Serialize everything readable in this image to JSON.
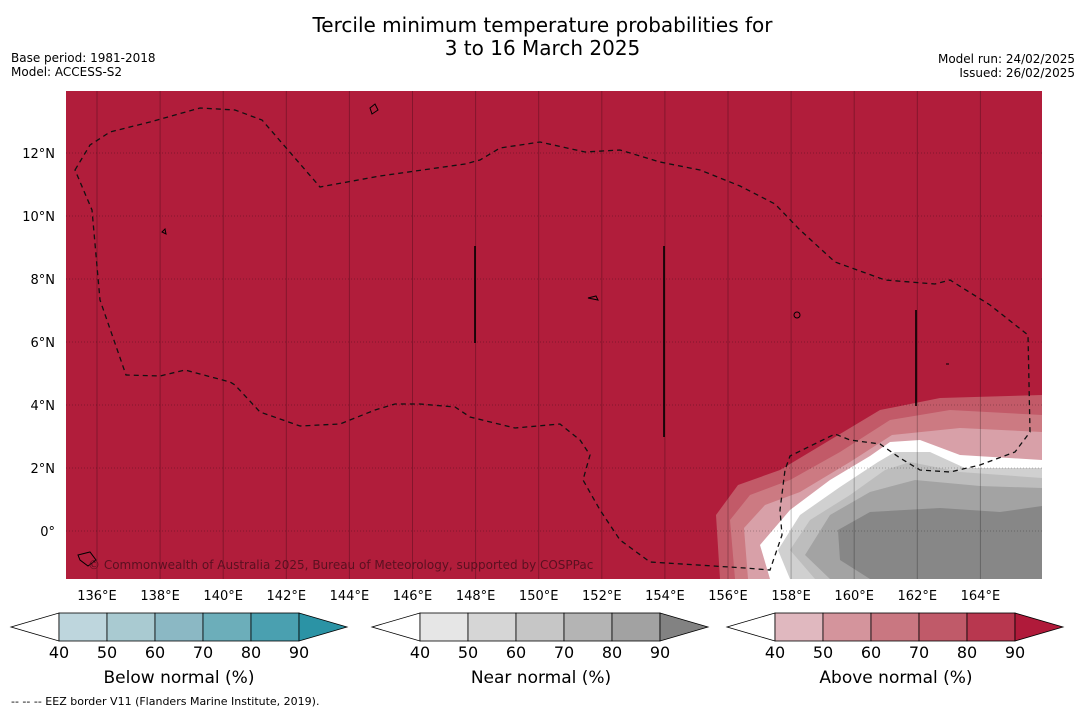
{
  "title_line1": "Tercile minimum temperature probabilities for",
  "title_line2": "3 to 16 March 2025",
  "base_period": "Base period: 1981-2018",
  "model": "Model: ACCESS-S2",
  "model_run": "Model run: 24/02/2025",
  "issued": "Issued: 26/02/2025",
  "copyright": "© Commonwealth of Australia 2025, Bureau of Meteorology, supported by COSPPac",
  "footnote": "--  --  -- EEZ border V11 (Flanders Marine Institute, 2019).",
  "map": {
    "x_ticks": [
      "136°E",
      "138°E",
      "140°E",
      "142°E",
      "144°E",
      "146°E",
      "148°E",
      "150°E",
      "152°E",
      "154°E",
      "156°E",
      "158°E",
      "160°E",
      "162°E",
      "164°E"
    ],
    "y_ticks": [
      "12°N",
      "10°N",
      "8°N",
      "6°N",
      "4°N",
      "2°N",
      "0°"
    ],
    "background_color": "#b11d3b"
  },
  "legends": [
    {
      "label": "Below normal (%)",
      "ticks": [
        "40",
        "50",
        "60",
        "70",
        "80",
        "90"
      ],
      "colors": [
        "#ffffff",
        "#bed6dd",
        "#a9cad1",
        "#8bb8c4",
        "#6caeba",
        "#4aa0b0",
        "#2b93a5"
      ]
    },
    {
      "label": "Near normal (%)",
      "ticks": [
        "40",
        "50",
        "60",
        "70",
        "80",
        "90"
      ],
      "colors": [
        "#ffffff",
        "#e6e6e6",
        "#d6d6d6",
        "#c6c6c6",
        "#b4b4b4",
        "#a2a2a2",
        "#828282"
      ]
    },
    {
      "label": "Above normal (%)",
      "ticks": [
        "40",
        "50",
        "60",
        "70",
        "80",
        "90"
      ],
      "colors": [
        "#ffffff",
        "#e0b8bf",
        "#d4949c",
        "#c97781",
        "#c05a69",
        "#b8374f",
        "#b01a3a"
      ]
    }
  ]
}
